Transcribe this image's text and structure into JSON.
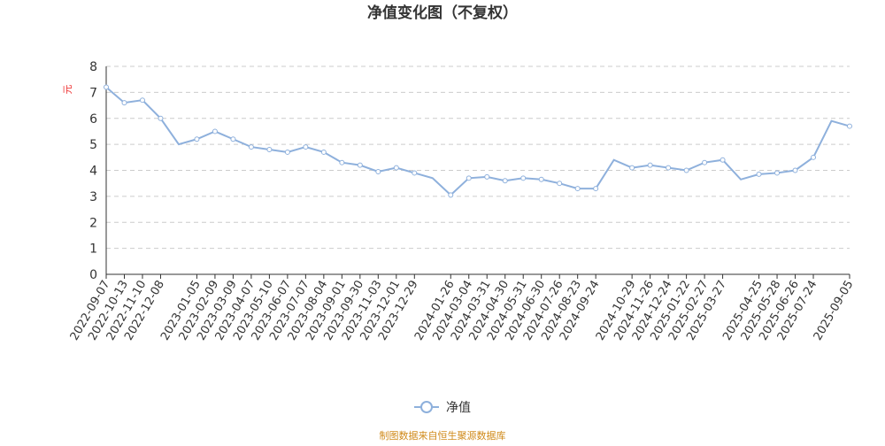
{
  "chart_data": {
    "type": "line",
    "title": "净值变化图（不复权）",
    "y_label": "元",
    "source": "制图数据来自恒生聚源数据库",
    "categories": [
      "2022-09-07",
      "2022-10-13",
      "2022-11-10",
      "2022-12-08",
      null,
      "2023-01-05",
      "2023-02-09",
      "2023-03-09",
      "2023-04-07",
      "2023-05-10",
      "2023-06-07",
      "2023-07-07",
      "2023-08-04",
      "2023-09-01",
      "2023-09-30",
      "2023-11-03",
      "2023-12-01",
      "2023-12-29",
      null,
      "2024-01-26",
      "2024-03-04",
      "2024-03-31",
      "2024-04-30",
      "2024-05-31",
      "2024-06-30",
      "2024-07-26",
      "2024-08-23",
      "2024-09-24",
      null,
      "2024-10-29",
      "2024-11-26",
      "2024-12-24",
      "2025-01-22",
      "2025-02-27",
      "2025-03-27",
      null,
      "2025-04-25",
      "2025-05-28",
      "2025-06-26",
      "2025-07-24",
      null,
      "2025-09-05"
    ],
    "series": [
      {
        "name": "净值",
        "color": "#8eb0dc",
        "values": [
          7.2,
          6.6,
          6.7,
          6.0,
          5.0,
          5.2,
          5.5,
          5.2,
          4.9,
          4.8,
          4.7,
          4.9,
          4.7,
          4.3,
          4.2,
          3.95,
          4.1,
          3.9,
          3.7,
          3.05,
          3.7,
          3.75,
          3.6,
          3.7,
          3.65,
          3.5,
          3.3,
          3.3,
          4.4,
          4.1,
          4.2,
          4.1,
          4.0,
          4.3,
          4.4,
          3.65,
          3.85,
          3.9,
          4.0,
          4.5,
          5.9,
          5.7
        ]
      }
    ],
    "ylim": [
      0,
      8
    ],
    "yticks": [
      0,
      1,
      2,
      3,
      4,
      5,
      6,
      7,
      8
    ],
    "grid": true,
    "legend": "bottom"
  }
}
